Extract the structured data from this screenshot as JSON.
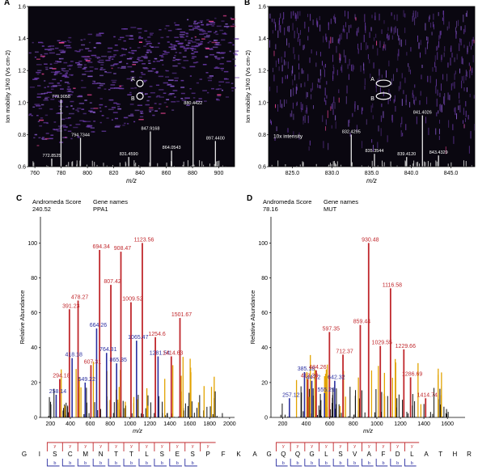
{
  "chart_data": [
    {
      "panel": "A",
      "type": "heatmap",
      "xlabel": "m/z",
      "ylabel": "Ion mobility 1/K0 (Vs cm-2)",
      "xlim": [
        755,
        912
      ],
      "ylim": [
        0.6,
        1.6
      ],
      "x_ticks": [
        "760",
        "780",
        "800",
        "820",
        "840",
        "860",
        "880",
        "900"
      ],
      "y_ticks": [
        "0.6",
        "0.8",
        "1.0",
        "1.2",
        "1.4",
        "1.6"
      ],
      "markers": [
        {
          "label": "A",
          "x": 840,
          "y": 1.12
        },
        {
          "label": "B",
          "x": 840,
          "y": 1.04
        }
      ],
      "peaks": [
        {
          "x": 772.8525,
          "label": "772.8525",
          "h": 0.05
        },
        {
          "x": 779.9058,
          "label": "779.9058",
          "h": 0.42
        },
        {
          "x": 794.7344,
          "label": "794.7344",
          "h": 0.18
        },
        {
          "x": 831.459,
          "label": "831.4590",
          "h": 0.06
        },
        {
          "x": 847.9168,
          "label": "847.9168",
          "h": 0.22
        },
        {
          "x": 864.0543,
          "label": "864.0543",
          "h": 0.1
        },
        {
          "x": 880.4422,
          "label": "880.4422",
          "h": 0.38
        },
        {
          "x": 897.44,
          "label": "897.4400",
          "h": 0.16
        }
      ]
    },
    {
      "panel": "B",
      "type": "heatmap",
      "xlabel": "m/z",
      "ylabel": "Ion mobility 1/K0 (Vs cm-2)",
      "xlim": [
        822,
        848
      ],
      "ylim": [
        0.6,
        1.6
      ],
      "x_ticks": [
        "825.0",
        "830.0",
        "835.0",
        "840.0",
        "845.0"
      ],
      "y_ticks": [
        "0.6",
        "0.8",
        "1.0",
        "1.2",
        "1.4",
        "1.6"
      ],
      "annotation": "10x intensity",
      "markers": [
        {
          "label": "A",
          "x": 836.5,
          "y": 1.12
        },
        {
          "label": "B",
          "x": 836.5,
          "y": 1.04
        }
      ],
      "peaks": [
        {
          "x": 832.4295,
          "label": "832.4295",
          "h": 0.2
        },
        {
          "x": 835.3544,
          "label": "835.3544",
          "h": 0.08
        },
        {
          "x": 839.412,
          "label": "839.4120",
          "h": 0.06
        },
        {
          "x": 841.4026,
          "label": "841.4026",
          "h": 0.32
        },
        {
          "x": 843.4329,
          "label": "843.4329",
          "h": 0.07
        }
      ]
    },
    {
      "panel": "C",
      "type": "bar",
      "info_labels": [
        "Andromeda Score",
        "Gene names"
      ],
      "info_values": [
        "240.52",
        "PPA1"
      ],
      "xlabel": "m/z",
      "ylabel": "Relative Abundance",
      "xlim": [
        100,
        2050
      ],
      "ylim": [
        0,
        115
      ],
      "x_ticks": [
        "200",
        "400",
        "600",
        "800",
        "1000",
        "1200",
        "1400",
        "1600",
        "1800",
        "2000"
      ],
      "y_ticks": [
        "0",
        "20",
        "40",
        "60",
        "80",
        "100"
      ],
      "y_ions": [
        {
          "x": 294.18,
          "value": 22,
          "label": "294.18"
        },
        {
          "x": 391.23,
          "value": 62,
          "label": "391.23"
        },
        {
          "x": 478.27,
          "value": 67,
          "label": "478.27"
        },
        {
          "x": 607.31,
          "value": 30,
          "label": "607.31"
        },
        {
          "x": 694.34,
          "value": 96,
          "label": "694.34"
        },
        {
          "x": 807.42,
          "value": 76,
          "label": "807.42"
        },
        {
          "x": 908.47,
          "value": 95,
          "label": "908.47"
        },
        {
          "x": 1009.52,
          "value": 66,
          "label": "1009.52"
        },
        {
          "x": 1123.56,
          "value": 100,
          "label": "1123.56"
        },
        {
          "x": 1254.6,
          "value": 46,
          "label": "1254.6"
        },
        {
          "x": 1414.63,
          "value": 35,
          "label": "1414.63"
        },
        {
          "x": 1501.67,
          "value": 57,
          "label": "1501.67"
        }
      ],
      "b_ions": [
        {
          "x": 258.14,
          "value": 13,
          "label": "258.14"
        },
        {
          "x": 418.18,
          "value": 34,
          "label": "418.18"
        },
        {
          "x": 549.22,
          "value": 20,
          "label": "549.22"
        },
        {
          "x": 664.26,
          "value": 51,
          "label": "664.26"
        },
        {
          "x": 764.31,
          "value": 37,
          "label": "764.31"
        },
        {
          "x": 865.35,
          "value": 31,
          "label": "865.35"
        },
        {
          "x": 1065.47,
          "value": 44,
          "label": "1065.47"
        },
        {
          "x": 1281.54,
          "value": 35,
          "label": "1281.54"
        }
      ],
      "sequence": [
        "G",
        "I",
        "S",
        "C",
        "M",
        "N",
        "T",
        "T",
        "L",
        "S",
        "E",
        "S",
        "P",
        "F",
        "K"
      ]
    },
    {
      "panel": "D",
      "type": "bar",
      "info_labels": [
        "Andromeda Score",
        "Gene names"
      ],
      "info_values": [
        "78.16",
        "MUT"
      ],
      "xlabel": "m/z",
      "ylabel": "Relative Abundance",
      "xlim": [
        100,
        1750
      ],
      "ylim": [
        0,
        115
      ],
      "x_ticks": [
        "200",
        "400",
        "600",
        "800",
        "1000",
        "1200",
        "1400",
        "1600"
      ],
      "y_ticks": [
        "0",
        "20",
        "40",
        "60",
        "80",
        "100"
      ],
      "y_ions": [
        {
          "x": 413.23,
          "value": 22,
          "label": "413.23"
        },
        {
          "x": 484.26,
          "value": 27,
          "label": "484.26"
        },
        {
          "x": 597.35,
          "value": 49,
          "label": "597.35"
        },
        {
          "x": 712.37,
          "value": 36,
          "label": "712.37"
        },
        {
          "x": 859.44,
          "value": 53,
          "label": "859.44"
        },
        {
          "x": 930.48,
          "value": 100,
          "label": "930.48"
        },
        {
          "x": 1029.55,
          "value": 41,
          "label": "1029.55"
        },
        {
          "x": 1116.58,
          "value": 74,
          "label": "1116.58"
        },
        {
          "x": 1229.66,
          "value": 39,
          "label": "1229.66"
        },
        {
          "x": 1286.69,
          "value": 23,
          "label": "1286.69"
        },
        {
          "x": 1414.74,
          "value": 11,
          "label": "1414.74"
        }
      ],
      "b_ions": [
        {
          "x": 257.12,
          "value": 11,
          "label": "257.12"
        },
        {
          "x": 385.18,
          "value": 26,
          "label": "385.18"
        },
        {
          "x": 447.2,
          "value": 21,
          "label": "447.2"
        },
        {
          "x": 555.29,
          "value": 14,
          "label": "555.29"
        },
        {
          "x": 642.32,
          "value": 21,
          "label": "642.32"
        }
      ],
      "sequence": [
        "A",
        "G",
        "Q",
        "Q",
        "G",
        "L",
        "S",
        "V",
        "A",
        "F",
        "D",
        "L",
        "A",
        "T",
        "H",
        "R"
      ]
    }
  ],
  "colors": {
    "y_ion": "#c0282d",
    "b_ion": "#2b2fa0",
    "other_ion": "#e2a300",
    "heatmap_bg": "#0a0710",
    "heatmap_band": "#6a3aa8",
    "heatmap_hot": "#ff4aa0"
  }
}
